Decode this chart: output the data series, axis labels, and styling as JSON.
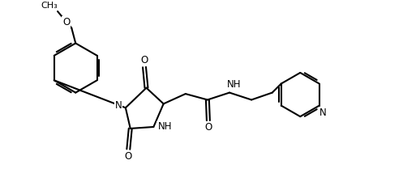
{
  "background_color": "#ffffff",
  "line_color": "#000000",
  "line_width": 1.5,
  "font_size": 8.5,
  "figsize": [
    4.97,
    2.4
  ],
  "dpi": 100,
  "xlim": [
    0,
    10
  ],
  "ylim": [
    0,
    4.84
  ],
  "methoxy_label": "O",
  "methoxy_ch3": "CH₃",
  "N_label": "N",
  "NH_label": "NH",
  "O_label": "O",
  "H_label": "H"
}
